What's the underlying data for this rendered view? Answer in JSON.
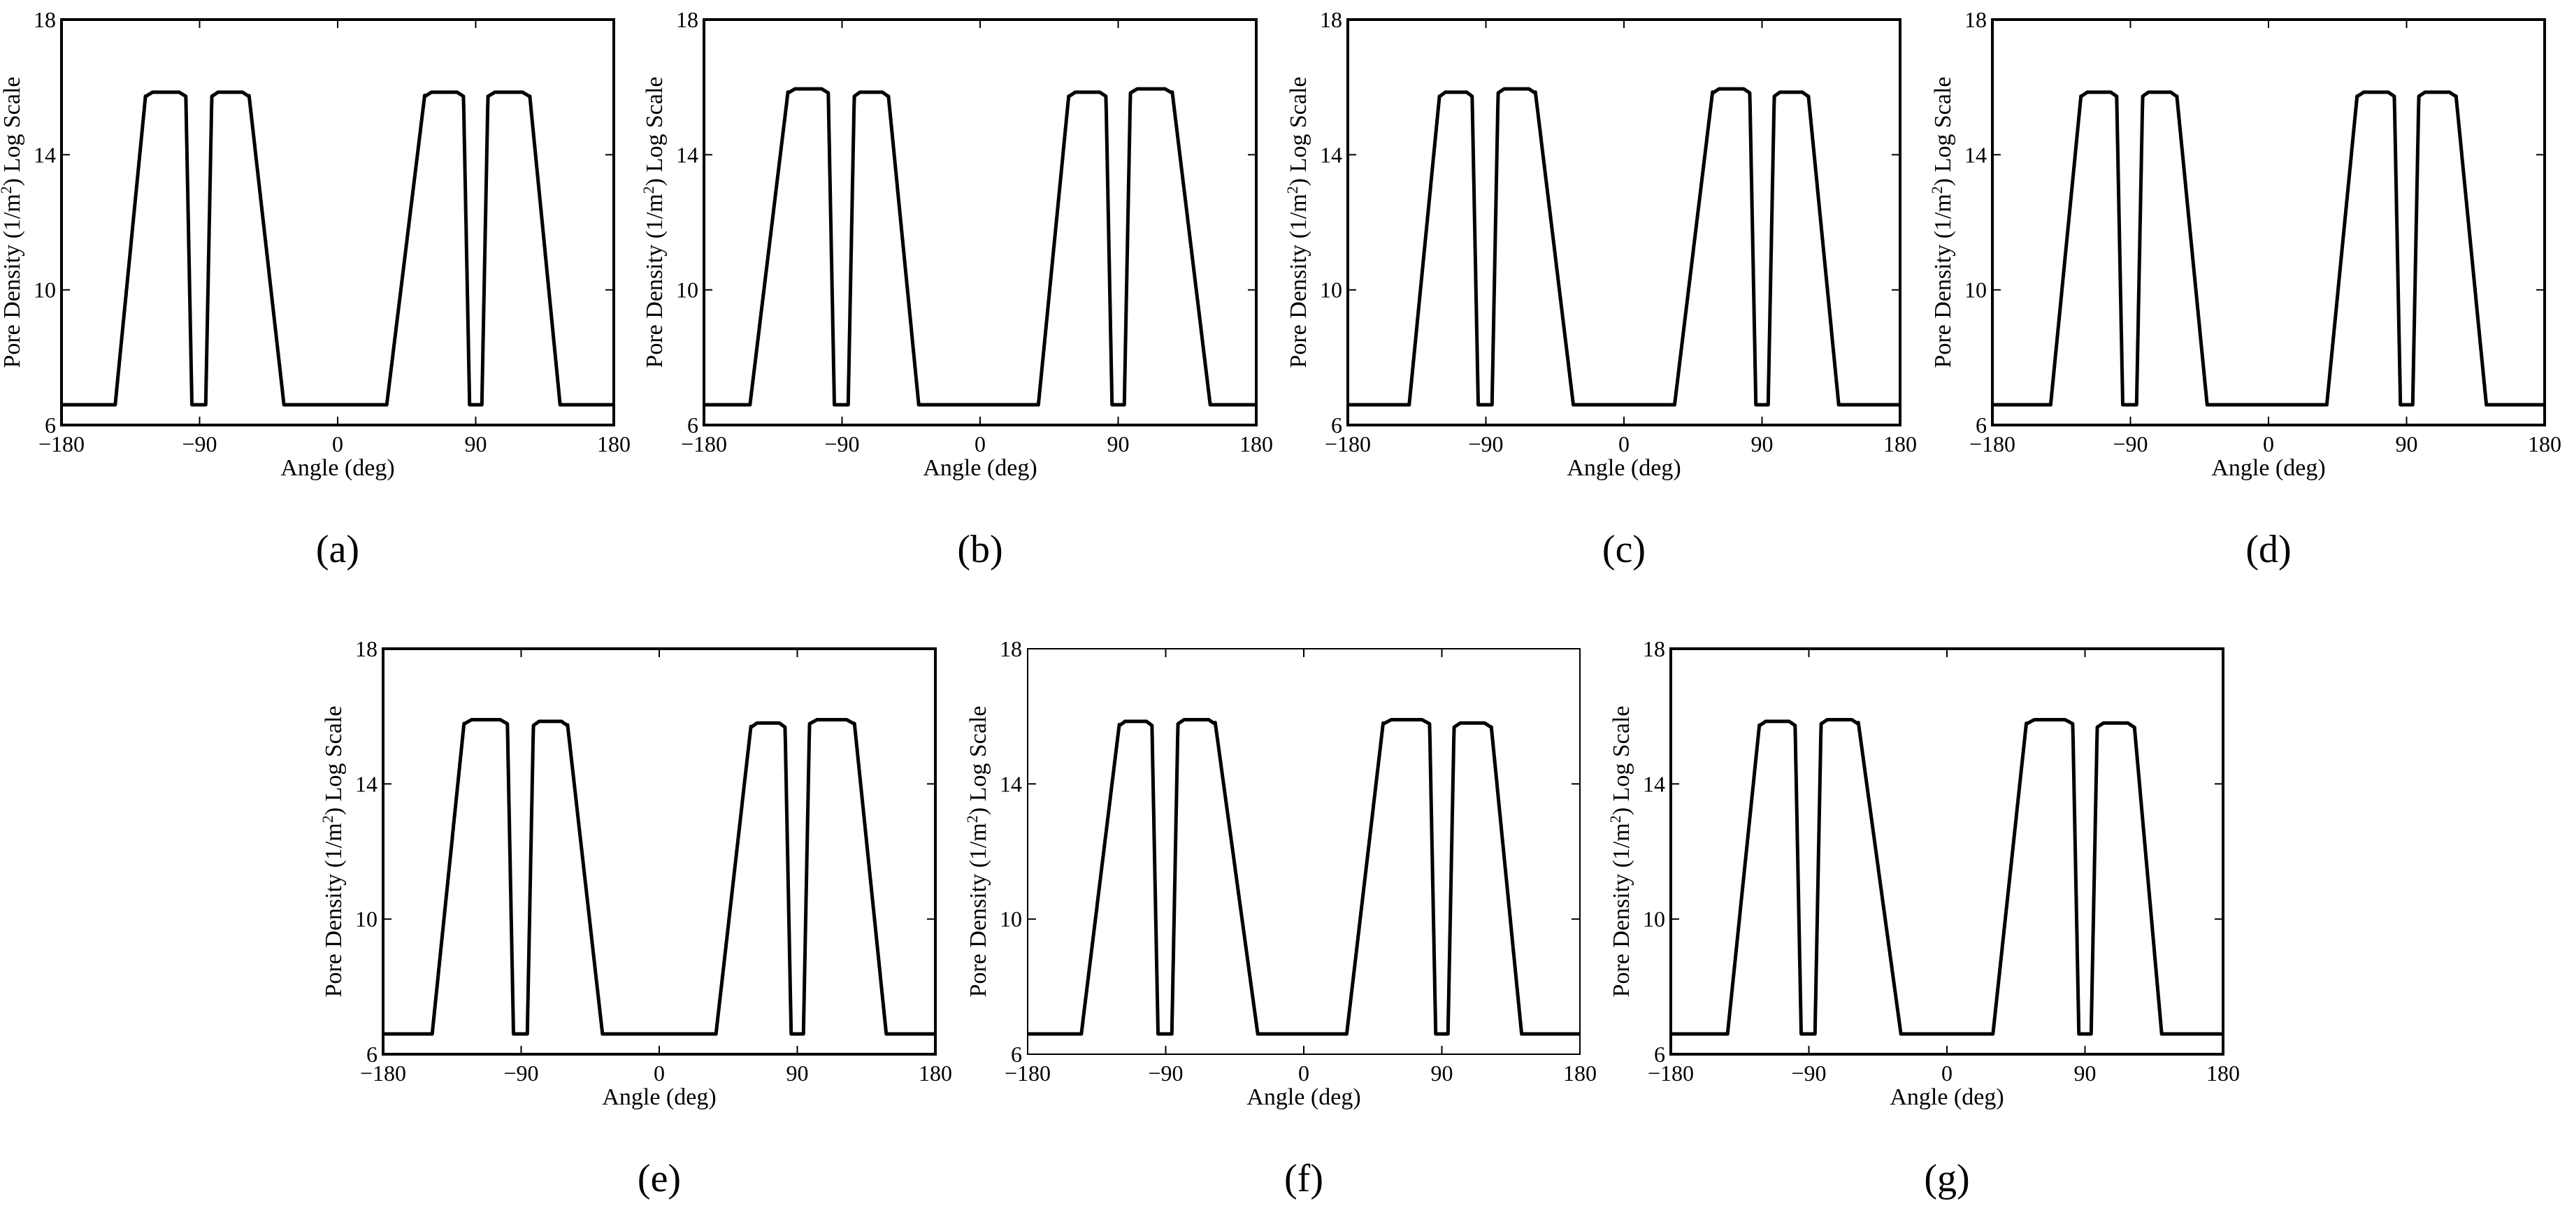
{
  "figure": {
    "shared_xlabel": "Angle (deg)",
    "shared_ylabel": "Pore Density (1/m",
    "shared_ylabel_sup": "2",
    "shared_ylabel_tail": ") Log Scale",
    "line_color": "#000000"
  },
  "chart_data": [
    {
      "panel": "(a)",
      "type": "line",
      "xlabel": "Angle (deg)",
      "ylabel": "Pore Density (1/m2) Log Scale",
      "xlim": [
        -180,
        180
      ],
      "ylim": [
        6,
        18
      ],
      "xticks": [
        "−180",
        "−90",
        "0",
        "90",
        "180"
      ],
      "yticks": [
        "6",
        "10",
        "14",
        "18"
      ],
      "grid": false,
      "baseline": 6.6,
      "lobes": [
        {
          "x_rise": [
            -145,
            -125
          ],
          "x_fall": [
            -99,
            -95
          ],
          "peak": 15.85
        },
        {
          "x_rise": [
            -86,
            -82
          ],
          "x_fall": [
            -58,
            -35
          ],
          "peak": 15.85
        },
        {
          "x_rise": [
            32,
            57
          ],
          "x_fall": [
            82,
            86
          ],
          "peak": 15.85
        },
        {
          "x_rise": [
            94,
            98
          ],
          "x_fall": [
            125,
            145
          ],
          "peak": 15.85
        }
      ]
    },
    {
      "panel": "(b)",
      "type": "line",
      "xlabel": "Angle (deg)",
      "ylabel": "Pore Density (1/m2) Log Scale",
      "xlim": [
        -180,
        180
      ],
      "ylim": [
        6,
        18
      ],
      "xticks": [
        "−180",
        "−90",
        "0",
        "90",
        "180"
      ],
      "yticks": [
        "6",
        "10",
        "14",
        "18"
      ],
      "grid": false,
      "baseline": 6.6,
      "lobes": [
        {
          "x_rise": [
            -150,
            -125
          ],
          "x_fall": [
            -99,
            -95
          ],
          "peak": 15.95
        },
        {
          "x_rise": [
            -86,
            -82
          ],
          "x_fall": [
            -60,
            -40
          ],
          "peak": 15.85
        },
        {
          "x_rise": [
            38,
            58
          ],
          "x_fall": [
            82,
            86
          ],
          "peak": 15.85
        },
        {
          "x_rise": [
            94,
            98
          ],
          "x_fall": [
            125,
            150
          ],
          "peak": 15.95
        }
      ]
    },
    {
      "panel": "(c)",
      "type": "line",
      "xlabel": "Angle (deg)",
      "ylabel": "Pore Density (1/m2) Log Scale",
      "xlim": [
        -180,
        180
      ],
      "ylim": [
        6,
        18
      ],
      "xticks": [
        "−180",
        "−90",
        "0",
        "90",
        "180"
      ],
      "yticks": [
        "6",
        "10",
        "14",
        "18"
      ],
      "grid": false,
      "baseline": 6.6,
      "lobes": [
        {
          "x_rise": [
            -140,
            -120
          ],
          "x_fall": [
            -99,
            -95
          ],
          "peak": 15.85
        },
        {
          "x_rise": [
            -86,
            -82
          ],
          "x_fall": [
            -58,
            -33
          ],
          "peak": 15.95
        },
        {
          "x_rise": [
            33,
            58
          ],
          "x_fall": [
            82,
            86
          ],
          "peak": 15.95
        },
        {
          "x_rise": [
            94,
            98
          ],
          "x_fall": [
            120,
            140
          ],
          "peak": 15.85
        }
      ]
    },
    {
      "panel": "(d)",
      "type": "line",
      "xlabel": "Angle (deg)",
      "ylabel": "Pore Density (1/m2) Log Scale",
      "xlim": [
        -180,
        180
      ],
      "ylim": [
        6,
        18
      ],
      "xticks": [
        "−180",
        "−90",
        "0",
        "90",
        "180"
      ],
      "yticks": [
        "6",
        "10",
        "14",
        "18"
      ],
      "grid": false,
      "baseline": 6.6,
      "lobes": [
        {
          "x_rise": [
            -142,
            -122
          ],
          "x_fall": [
            -99,
            -95
          ],
          "peak": 15.85
        },
        {
          "x_rise": [
            -86,
            -82
          ],
          "x_fall": [
            -60,
            -40
          ],
          "peak": 15.85
        },
        {
          "x_rise": [
            38,
            58
          ],
          "x_fall": [
            82,
            86
          ],
          "peak": 15.85
        },
        {
          "x_rise": [
            94,
            98
          ],
          "x_fall": [
            122,
            142
          ],
          "peak": 15.85
        }
      ]
    },
    {
      "panel": "(e)",
      "type": "line",
      "xlabel": "Angle (deg)",
      "ylabel": "Pore Density (1/m2) Log Scale",
      "xlim": [
        -180,
        180
      ],
      "ylim": [
        6,
        18
      ],
      "xticks": [
        "−180",
        "−90",
        "0",
        "90",
        "180"
      ],
      "yticks": [
        "6",
        "10",
        "14",
        "18"
      ],
      "grid": false,
      "baseline": 6.6,
      "lobes": [
        {
          "x_rise": [
            -148,
            -127
          ],
          "x_fall": [
            -99,
            -95
          ],
          "peak": 15.9
        },
        {
          "x_rise": [
            -86,
            -82
          ],
          "x_fall": [
            -60,
            -37
          ],
          "peak": 15.85
        },
        {
          "x_rise": [
            37,
            60
          ],
          "x_fall": [
            82,
            86
          ],
          "peak": 15.8
        },
        {
          "x_rise": [
            94,
            98
          ],
          "x_fall": [
            127,
            148
          ],
          "peak": 15.9
        }
      ]
    },
    {
      "panel": "(f)",
      "type": "line",
      "xlabel": "Angle (deg)",
      "ylabel": "Pore Density (1/m2) Log Scale",
      "xlim": [
        -180,
        180
      ],
      "ylim": [
        6,
        18
      ],
      "xticks": [
        "−180",
        "−90",
        "0",
        "90",
        "180"
      ],
      "yticks": [
        "6",
        "10",
        "14",
        "18"
      ],
      "grid": false,
      "baseline": 6.6,
      "lobes": [
        {
          "x_rise": [
            -145,
            -120
          ],
          "x_fall": [
            -99,
            -95
          ],
          "peak": 15.85
        },
        {
          "x_rise": [
            -86,
            -82
          ],
          "x_fall": [
            -58,
            -30
          ],
          "peak": 15.9
        },
        {
          "x_rise": [
            28,
            52
          ],
          "x_fall": [
            82,
            86
          ],
          "peak": 15.9
        },
        {
          "x_rise": [
            94,
            98
          ],
          "x_fall": [
            122,
            142
          ],
          "peak": 15.8
        }
      ]
    },
    {
      "panel": "(g)",
      "type": "line",
      "xlabel": "Angle (deg)",
      "ylabel": "Pore Density (1/m2) Log Scale",
      "xlim": [
        -180,
        180
      ],
      "ylim": [
        6,
        18
      ],
      "xticks": [
        "−180",
        "−90",
        "0",
        "90",
        "180"
      ],
      "yticks": [
        "6",
        "10",
        "14",
        "18"
      ],
      "grid": false,
      "baseline": 6.6,
      "lobes": [
        {
          "x_rise": [
            -143,
            -122
          ],
          "x_fall": [
            -99,
            -95
          ],
          "peak": 15.85
        },
        {
          "x_rise": [
            -86,
            -82
          ],
          "x_fall": [
            -58,
            -30
          ],
          "peak": 15.9
        },
        {
          "x_rise": [
            30,
            52
          ],
          "x_fall": [
            82,
            86
          ],
          "peak": 15.9
        },
        {
          "x_rise": [
            94,
            98
          ],
          "x_fall": [
            122,
            140
          ],
          "peak": 15.8
        }
      ]
    }
  ]
}
